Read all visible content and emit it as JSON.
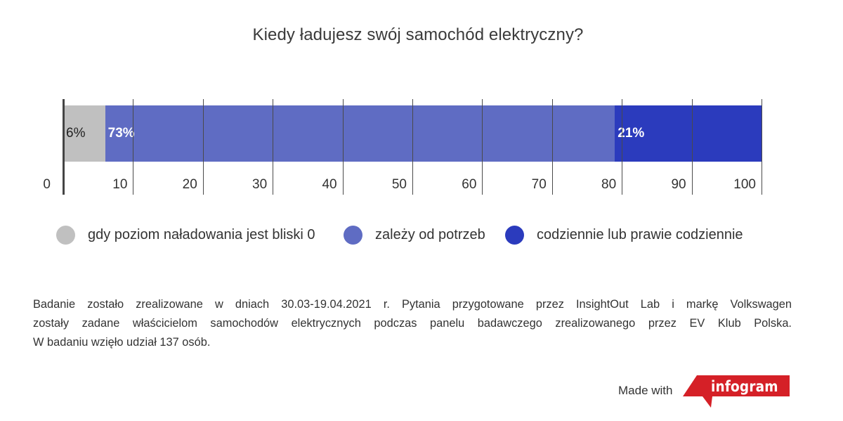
{
  "title": "Kiedy ładujesz swój samochód elektryczny?",
  "chart_data": {
    "type": "bar",
    "orientation": "horizontal",
    "stacked": true,
    "title": "Kiedy ładujesz swój samochód elektryczny?",
    "xlabel": "",
    "ylabel": "",
    "xlim": [
      0,
      100
    ],
    "x_ticks": [
      0,
      10,
      20,
      30,
      40,
      50,
      60,
      70,
      80,
      90,
      100
    ],
    "grid": true,
    "legend_position": "bottom",
    "categories": [
      ""
    ],
    "series": [
      {
        "name": "gdy poziom naładowania jest bliski 0",
        "values": [
          6
        ],
        "label": "6%",
        "color": "#c0c0c0"
      },
      {
        "name": "zależy od potrzeb",
        "values": [
          73
        ],
        "label": "73%",
        "color": "#5f6cc3"
      },
      {
        "name": "codziennie lub prawie codziennie",
        "values": [
          21
        ],
        "label": "21%",
        "color": "#2b3bbd"
      }
    ]
  },
  "axis": {
    "ticks": [
      "0",
      "10",
      "20",
      "30",
      "40",
      "50",
      "60",
      "70",
      "80",
      "90",
      "100"
    ]
  },
  "legend": [
    {
      "label": "gdy poziom naładowania jest bliski 0",
      "color": "#c0c0c0"
    },
    {
      "label": "zależy od potrzeb",
      "color": "#5f6cc3"
    },
    {
      "label": "codziennie lub prawie codziennie",
      "color": "#2b3bbd"
    }
  ],
  "note": {
    "lines": [
      "Badanie zostało zrealizowane w dniach 30.03-19.04.2021 r. Pytania przygotowane przez InsightOut Lab i markę Volkswagen",
      "zostały zadane właścicielom samochodów elektrycznych podczas panelu badawczego zrealizowanego przez EV Klub Polska.",
      "W badaniu wzięło udział 137 osób."
    ]
  },
  "footer": {
    "made_with": "Made with",
    "brand": "infogram",
    "brand_color": "#d52027"
  }
}
